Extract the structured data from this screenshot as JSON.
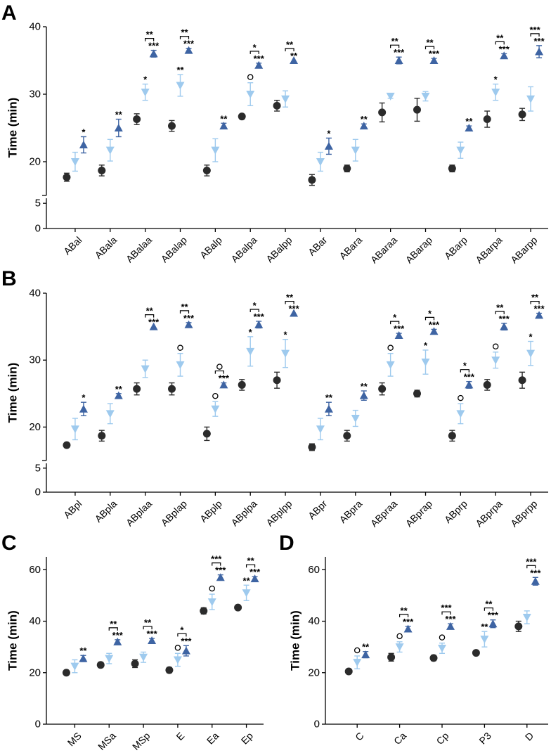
{
  "colors": {
    "black_series": "#2b2b2b",
    "light_series": "#9ecaee",
    "dark_series": "#3e64a3"
  },
  "chart_data": [
    {
      "type": "scatter",
      "panel": "A",
      "ylabel": "Time (min)",
      "ylim": [
        0,
        40
      ],
      "yaxis_break": [
        6,
        15
      ],
      "yticks": [
        0,
        5,
        20,
        30,
        40
      ],
      "categories": [
        "ABal",
        "ABala",
        "ABalaa",
        "ABalap",
        "ABalp",
        "ABalpa",
        "ABalpp",
        "ABar",
        "ABara",
        "ABaraa",
        "ABarap",
        "ABarp",
        "ABarpa",
        "ABarpp"
      ],
      "series": [
        {
          "name": "black",
          "marker": "circle",
          "color": "#2b2b2b",
          "values": [
            17.7,
            18.7,
            26.3,
            25.3,
            18.7,
            26.7,
            28.3,
            17.3,
            19.0,
            27.3,
            27.7,
            19.0,
            26.3,
            27.0
          ],
          "errors": [
            0.6,
            0.8,
            0.8,
            0.8,
            0.8,
            0,
            0.8,
            0.8,
            0.5,
            1.4,
            1.7,
            0.5,
            1.2,
            0.9
          ]
        },
        {
          "name": "light",
          "marker": "triangle-down",
          "color": "#9ecaee",
          "values": [
            20.0,
            21.7,
            30.3,
            31.3,
            21.7,
            30.0,
            29.3,
            20.0,
            21.7,
            29.7,
            29.7,
            21.7,
            30.3,
            29.3
          ],
          "errors": [
            1.4,
            1.6,
            1.2,
            1.6,
            1.7,
            1.7,
            1.2,
            1.4,
            1.6,
            0.3,
            0.7,
            1.2,
            1.2,
            1.8
          ]
        },
        {
          "name": "dark",
          "marker": "triangle-up",
          "color": "#3e64a3",
          "values": [
            22.5,
            25.0,
            36.0,
            36.5,
            25.3,
            34.3,
            35.0,
            22.3,
            25.3,
            35.0,
            35.0,
            25.0,
            35.7,
            36.3
          ],
          "errors": [
            1.2,
            1.3,
            0.5,
            0.3,
            0.4,
            0.3,
            0,
            1.2,
            0.3,
            0.5,
            0.3,
            0.3,
            0.3,
            0.9
          ]
        }
      ],
      "annotations": [
        {
          "category": "ABal",
          "light": "",
          "dark": "*",
          "bracket": ""
        },
        {
          "category": "ABala",
          "light": "",
          "dark": "**",
          "bracket": ""
        },
        {
          "category": "ABalaa",
          "light": "*",
          "dark": "***",
          "bracket": "**"
        },
        {
          "category": "ABalap",
          "light": "**",
          "dark": "***",
          "bracket": "**"
        },
        {
          "category": "ABalp",
          "light": "",
          "dark": "**",
          "bracket": ""
        },
        {
          "category": "ABalpa",
          "light": "○",
          "dark": "***",
          "bracket": "*"
        },
        {
          "category": "ABalpp",
          "light": "",
          "dark": "**",
          "bracket": "**"
        },
        {
          "category": "ABar",
          "light": "",
          "dark": "*",
          "bracket": ""
        },
        {
          "category": "ABara",
          "light": "",
          "dark": "**",
          "bracket": ""
        },
        {
          "category": "ABaraa",
          "light": "",
          "dark": "***",
          "bracket": "**"
        },
        {
          "category": "ABarap",
          "light": "",
          "dark": "***",
          "bracket": "**"
        },
        {
          "category": "ABarp",
          "light": "",
          "dark": "**",
          "bracket": ""
        },
        {
          "category": "ABarpa",
          "light": "*",
          "dark": "***",
          "bracket": "**"
        },
        {
          "category": "ABarpp",
          "light": "",
          "dark": "***",
          "bracket": "***"
        }
      ]
    },
    {
      "type": "scatter",
      "panel": "B",
      "ylabel": "Time (min)",
      "ylim": [
        0,
        40
      ],
      "yaxis_break": [
        6,
        15
      ],
      "yticks": [
        0,
        5,
        20,
        30,
        40
      ],
      "categories": [
        "ABpl",
        "ABpla",
        "ABplaa",
        "ABplap",
        "ABplp",
        "ABplpa",
        "ABplpp",
        "ABpr",
        "ABpra",
        "ABpraa",
        "ABprap",
        "ABprp",
        "ABprpa",
        "ABprpp"
      ],
      "series": [
        {
          "name": "black",
          "marker": "circle",
          "color": "#2b2b2b",
          "values": [
            17.3,
            18.7,
            25.7,
            25.7,
            19.0,
            26.3,
            27.0,
            17.0,
            18.7,
            25.7,
            25.0,
            18.7,
            26.3,
            27.0
          ],
          "errors": [
            0,
            0.8,
            0.9,
            0.9,
            1.0,
            0.8,
            1.2,
            0.5,
            0.8,
            0.9,
            0.5,
            0.8,
            0.8,
            1.2
          ]
        },
        {
          "name": "light",
          "marker": "triangle-down",
          "color": "#9ecaee",
          "values": [
            19.7,
            22.0,
            28.7,
            29.3,
            22.7,
            31.3,
            31.0,
            19.7,
            21.3,
            29.3,
            29.7,
            22.0,
            30.0,
            31.0
          ],
          "errors": [
            1.6,
            1.5,
            1.3,
            1.7,
            1.1,
            2.2,
            2.1,
            1.6,
            1.2,
            1.7,
            1.8,
            1.5,
            1.2,
            1.8
          ]
        },
        {
          "name": "dark",
          "marker": "triangle-up",
          "color": "#3e64a3",
          "values": [
            22.7,
            24.7,
            35.0,
            35.3,
            26.3,
            35.3,
            37.0,
            22.7,
            24.7,
            33.7,
            34.3,
            26.3,
            35.0,
            36.7
          ],
          "errors": [
            1.0,
            0.3,
            0,
            0.3,
            0.3,
            0.5,
            0,
            1.0,
            0.7,
            0.3,
            0.3,
            0.5,
            0.5,
            0.3
          ]
        }
      ],
      "annotations": [
        {
          "category": "ABpl",
          "light": "",
          "dark": "*",
          "bracket": ""
        },
        {
          "category": "ABpla",
          "light": "",
          "dark": "**",
          "bracket": ""
        },
        {
          "category": "ABplaa",
          "light": "",
          "dark": "***",
          "bracket": "**"
        },
        {
          "category": "ABplap",
          "light": "○",
          "dark": "***",
          "bracket": "**"
        },
        {
          "category": "ABplp",
          "light": "○",
          "dark": "***",
          "bracket": "○"
        },
        {
          "category": "ABplpa",
          "light": "*",
          "dark": "***",
          "bracket": "*"
        },
        {
          "category": "ABplpp",
          "light": "*",
          "dark": "***",
          "bracket": "**"
        },
        {
          "category": "ABpr",
          "light": "",
          "dark": "**",
          "bracket": ""
        },
        {
          "category": "ABpra",
          "light": "",
          "dark": "**",
          "bracket": ""
        },
        {
          "category": "ABpraa",
          "light": "○",
          "dark": "***",
          "bracket": "*"
        },
        {
          "category": "ABprap",
          "light": "*",
          "dark": "***",
          "bracket": "*"
        },
        {
          "category": "ABprp",
          "light": "○",
          "dark": "***",
          "bracket": "*"
        },
        {
          "category": "ABprpa",
          "light": "○",
          "dark": "***",
          "bracket": "**"
        },
        {
          "category": "ABprpp",
          "light": "*",
          "dark": "***",
          "bracket": "**"
        }
      ]
    },
    {
      "type": "scatter",
      "panel": "C",
      "ylabel": "Time (min)",
      "ylim": [
        0,
        65
      ],
      "yticks": [
        0,
        20,
        40,
        60
      ],
      "categories": [
        "MS",
        "MSa",
        "MSp",
        "E",
        "Ea",
        "Ep"
      ],
      "series": [
        {
          "name": "black",
          "marker": "circle",
          "color": "#2b2b2b",
          "values": [
            20.0,
            23.0,
            23.5,
            21.0,
            44.0,
            45.3
          ],
          "errors": [
            0,
            1.0,
            1.5,
            1.0,
            1.2,
            0.8
          ]
        },
        {
          "name": "light",
          "marker": "triangle-down",
          "color": "#9ecaee",
          "values": [
            22.5,
            25.5,
            26.0,
            25.0,
            47.5,
            51.0
          ],
          "errors": [
            2.5,
            2.0,
            2.0,
            2.5,
            3.0,
            3.0
          ]
        },
        {
          "name": "dark",
          "marker": "triangle-up",
          "color": "#3e64a3",
          "values": [
            25.5,
            32.0,
            32.5,
            28.5,
            57.0,
            56.5
          ],
          "errors": [
            1.2,
            0.8,
            0.8,
            2.0,
            1.0,
            0.8
          ]
        }
      ],
      "annotations": [
        {
          "category": "MS",
          "light": "",
          "dark": "**",
          "bracket": ""
        },
        {
          "category": "MSa",
          "light": "",
          "dark": "***",
          "bracket": "**"
        },
        {
          "category": "MSp",
          "light": "",
          "dark": "***",
          "bracket": "**"
        },
        {
          "category": "E",
          "light": "○",
          "dark": "***",
          "bracket": "*"
        },
        {
          "category": "Ea",
          "light": "○",
          "dark": "***",
          "bracket": "***"
        },
        {
          "category": "Ep",
          "light": "**",
          "dark": "***",
          "bracket": "**"
        }
      ]
    },
    {
      "type": "scatter",
      "panel": "D",
      "ylabel": "Time (min)",
      "ylim": [
        0,
        65
      ],
      "yticks": [
        0,
        20,
        40,
        60
      ],
      "categories": [
        "C",
        "Ca",
        "Cp",
        "P3",
        "D"
      ],
      "series": [
        {
          "name": "black",
          "marker": "circle",
          "color": "#2b2b2b",
          "values": [
            20.5,
            26.0,
            25.7,
            27.7,
            38.0
          ],
          "errors": [
            0,
            1.5,
            1.0,
            0.8,
            2.0
          ]
        },
        {
          "name": "light",
          "marker": "triangle-down",
          "color": "#9ecaee",
          "values": [
            24.0,
            30.0,
            29.5,
            33.0,
            41.5
          ],
          "errors": [
            2.5,
            2.0,
            2.0,
            3.0,
            2.5
          ]
        },
        {
          "name": "dark",
          "marker": "triangle-up",
          "color": "#3e64a3",
          "values": [
            27.0,
            37.0,
            38.0,
            39.0,
            55.5
          ],
          "errors": [
            1.2,
            1.0,
            1.0,
            1.5,
            1.5
          ]
        }
      ],
      "annotations": [
        {
          "category": "C",
          "light": "○",
          "dark": "**",
          "bracket": ""
        },
        {
          "category": "Ca",
          "light": "○",
          "dark": "***",
          "bracket": "**"
        },
        {
          "category": "Cp",
          "light": "○",
          "dark": "***",
          "bracket": "***"
        },
        {
          "category": "P3",
          "light": "**",
          "dark": "***",
          "bracket": "**"
        },
        {
          "category": "D",
          "light": "",
          "dark": "***",
          "bracket": "***"
        }
      ]
    }
  ]
}
